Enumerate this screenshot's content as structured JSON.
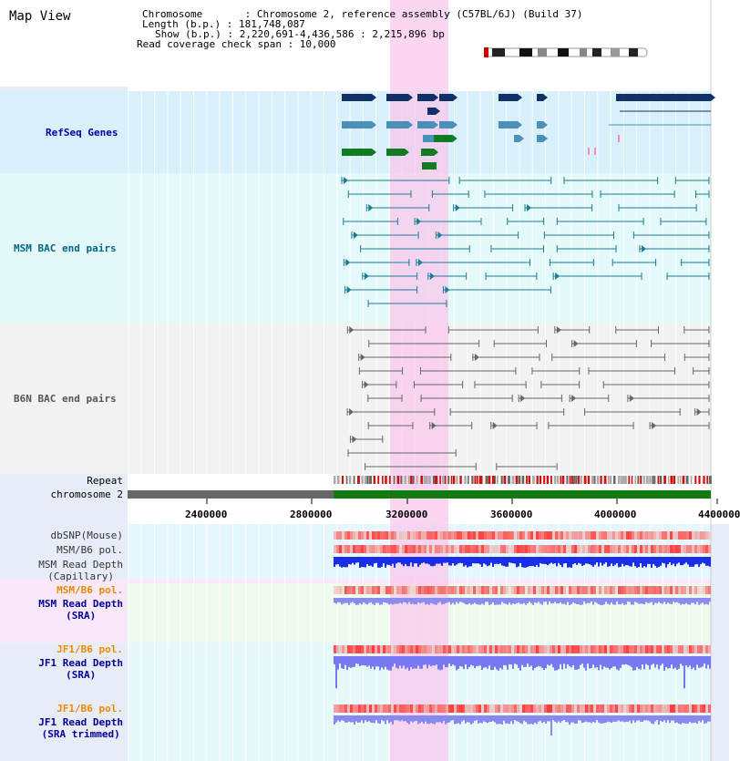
{
  "header": {
    "title": "Map View",
    "chromosome": "Chromosome       : Chromosome 2, reference assembly (C57BL/6J) (Build 37)",
    "length": "Length (b.p.) : 181,748,087",
    "show": "Show (b.p.) : 2,220,691-4,436,586 : 2,215,896 bp",
    "coverage": "Read coverage check span : 10,000"
  },
  "tracks": {
    "refseq": "RefSeq Genes",
    "msm_bac": "MSM BAC end pairs",
    "b6n_bac": "B6N BAC end pairs",
    "repeat": "Repeat",
    "chromosome": "chromosome 2",
    "dbsnp": "dbSNP(Mouse)",
    "msm_b6_pol_1": "MSM/B6 pol.",
    "msm_depth_cap_1": "MSM Read Depth",
    "msm_depth_cap_2": "(Capillary)",
    "msm_b6_pol_2": "MSM/B6 pol.",
    "msm_depth_sra_1": "MSM Read Depth",
    "msm_depth_sra_2": "(SRA)",
    "jf1_b6_pol_1": "JF1/B6 pol.",
    "jf1_depth_sra_1": "JF1 Read Depth",
    "jf1_depth_sra_2": "(SRA)",
    "jf1_b6_pol_2": "JF1/B6 pol.",
    "jf1_depth_trim_1": "JF1 Read Depth",
    "jf1_depth_trim_2": "(SRA trimmed)"
  },
  "axis": {
    "ticks": [
      "2400000",
      "2800000",
      "3200000",
      "3600000",
      "4000000",
      "4400000"
    ]
  },
  "colors": {
    "refseq_bg": "#dcf2fc",
    "msm_bg": "#e8fcfc",
    "b6n_bg": "#f4f4f4",
    "highlight": "#f8d8f0",
    "refseq_label": "#0000aa",
    "msm_label": "#006688",
    "b6n_label": "#555555",
    "pol_orange": "#ee8800",
    "depth_blue": "#000099"
  }
}
